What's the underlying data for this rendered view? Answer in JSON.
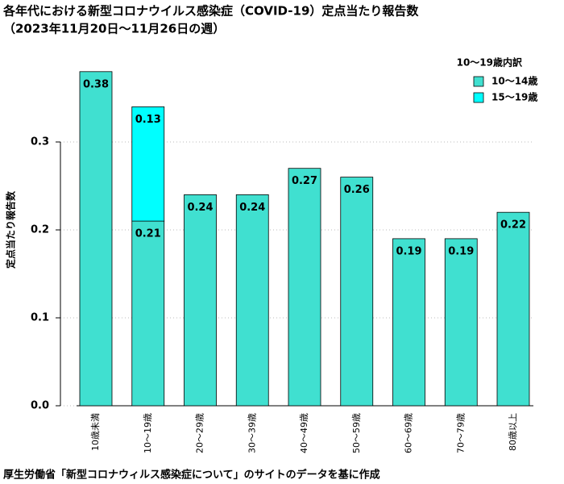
{
  "chart_data": {
    "type": "bar",
    "title": "各年代における新型コロナウイルス感染症（COVID-19）定点当たり報告数",
    "subtitle": "（2023年11月20日〜11月26日の週）",
    "y_label": "定点当たり報告数",
    "caption": "厚生労働省「新型コロナウィルス感染症について」のサイトのデータを基に作成",
    "legend_title": "10〜19歳内訳",
    "legend": "top-right",
    "grid": true,
    "stacked": true,
    "categories": [
      "10歳未満",
      "10〜19歳",
      "20〜29歳",
      "30〜39歳",
      "40〜49歳",
      "50〜59歳",
      "60〜69歳",
      "70〜79歳",
      "80歳以上"
    ],
    "series": [
      {
        "name": "10〜14歳",
        "color": "#40e0d0",
        "values": [
          0.38,
          0.21,
          0.24,
          0.24,
          0.27,
          0.26,
          0.19,
          0.19,
          0.22
        ]
      },
      {
        "name": "15〜19歳",
        "color": "#00ffff",
        "values": [
          null,
          0.13,
          null,
          null,
          null,
          null,
          null,
          null,
          null
        ]
      }
    ],
    "ylim": [
      0,
      0.4
    ],
    "yticks": [
      {
        "value": 0,
        "label": "0.0"
      },
      0.1,
      0.2,
      0.3
    ]
  }
}
